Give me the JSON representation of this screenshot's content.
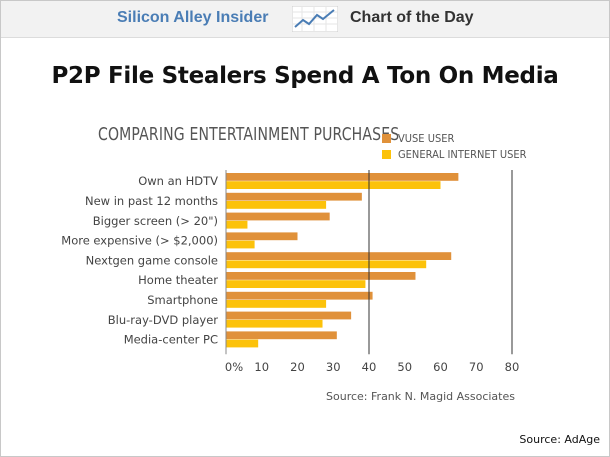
{
  "header": {
    "brand": "Silicon Alley Insider",
    "section": "Chart of the Day",
    "logo_icon": "trend-line-chart-icon"
  },
  "headline": "P2P File Stealers Spend A Ton On Media",
  "source_footer": "Source: AdAge",
  "colors": {
    "vuse": "#e0913a",
    "general": "#fcc20a",
    "brand_blue": "#4a7db5",
    "gridline": "#333333"
  },
  "chart_data": {
    "type": "bar",
    "orientation": "horizontal",
    "title": "COMPARING ENTERTAINMENT PURCHASES",
    "categories": [
      "Own an HDTV",
      "New in past 12 months",
      "Bigger screen (> 20\")",
      "More expensive (> $2,000)",
      "Nextgen game console",
      "Home theater",
      "Smartphone",
      "Blu-ray-DVD player",
      "Media-center PC"
    ],
    "series": [
      {
        "name": "VUSE USER",
        "values": [
          65,
          38,
          29,
          20,
          63,
          53,
          41,
          35,
          31
        ]
      },
      {
        "name": "GENERAL INTERNET USER",
        "values": [
          60,
          28,
          6,
          8,
          56,
          39,
          28,
          27,
          9
        ]
      }
    ],
    "xlim": [
      0,
      80
    ],
    "ticks": [
      "0%",
      "10",
      "20",
      "30",
      "40",
      "50",
      "60",
      "70",
      "80"
    ],
    "gridlines_at": [
      40,
      80
    ],
    "legend_position": "top-right",
    "source": "Source: Frank N. Magid Associates"
  }
}
